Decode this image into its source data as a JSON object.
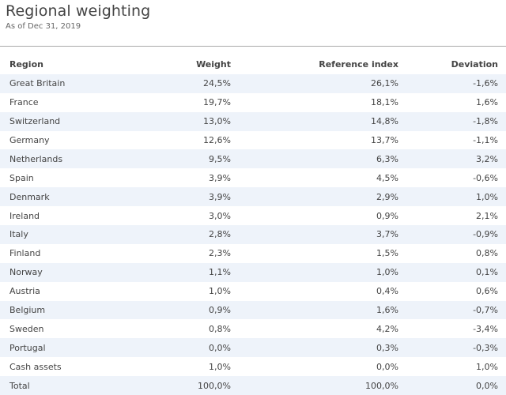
{
  "header": {
    "title": "Regional weighting",
    "subtitle": "As of Dec 31, 2019"
  },
  "table": {
    "columns": [
      "Region",
      "Weight",
      "Reference index",
      "Deviation"
    ],
    "rows": [
      {
        "region": "Great Britain",
        "weight": "24,5%",
        "reference": "26,1%",
        "deviation": "-1,6%"
      },
      {
        "region": "France",
        "weight": "19,7%",
        "reference": "18,1%",
        "deviation": "1,6%"
      },
      {
        "region": "Switzerland",
        "weight": "13,0%",
        "reference": "14,8%",
        "deviation": "-1,8%"
      },
      {
        "region": "Germany",
        "weight": "12,6%",
        "reference": "13,7%",
        "deviation": "-1,1%"
      },
      {
        "region": "Netherlands",
        "weight": "9,5%",
        "reference": "6,3%",
        "deviation": "3,2%"
      },
      {
        "region": "Spain",
        "weight": "3,9%",
        "reference": "4,5%",
        "deviation": "-0,6%"
      },
      {
        "region": "Denmark",
        "weight": "3,9%",
        "reference": "2,9%",
        "deviation": "1,0%"
      },
      {
        "region": "Ireland",
        "weight": "3,0%",
        "reference": "0,9%",
        "deviation": "2,1%"
      },
      {
        "region": "Italy",
        "weight": "2,8%",
        "reference": "3,7%",
        "deviation": "-0,9%"
      },
      {
        "region": "Finland",
        "weight": "2,3%",
        "reference": "1,5%",
        "deviation": "0,8%"
      },
      {
        "region": "Norway",
        "weight": "1,1%",
        "reference": "1,0%",
        "deviation": "0,1%"
      },
      {
        "region": "Austria",
        "weight": "1,0%",
        "reference": "0,4%",
        "deviation": "0,6%"
      },
      {
        "region": "Belgium",
        "weight": "0,9%",
        "reference": "1,6%",
        "deviation": "-0,7%"
      },
      {
        "region": "Sweden",
        "weight": "0,8%",
        "reference": "4,2%",
        "deviation": "-3,4%"
      },
      {
        "region": "Portugal",
        "weight": "0,0%",
        "reference": "0,3%",
        "deviation": "-0,3%"
      },
      {
        "region": "Cash assets",
        "weight": "1,0%",
        "reference": "0,0%",
        "deviation": "1,0%"
      },
      {
        "region": "Total",
        "weight": "100,0%",
        "reference": "100,0%",
        "deviation": "0,0%"
      }
    ]
  }
}
